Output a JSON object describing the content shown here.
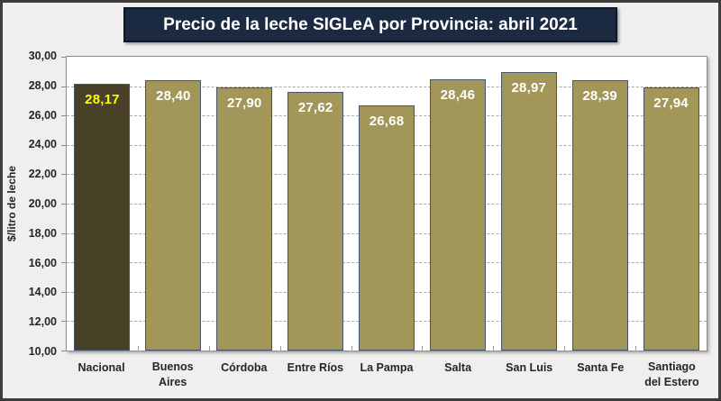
{
  "chart_data": {
    "type": "bar",
    "title": "Precio de la leche SIGLeA por Provincia: abril 2021",
    "ylabel": "$/litro de leche",
    "categories": [
      "Nacional",
      "Buenos Aires",
      "Córdoba",
      "Entre Ríos",
      "La Pampa",
      "Salta",
      "San Luis",
      "Santa Fe",
      "Santiago del Estero"
    ],
    "values": [
      28.17,
      28.4,
      27.9,
      27.62,
      26.68,
      28.46,
      28.97,
      28.39,
      27.94
    ],
    "value_labels": [
      "28,17",
      "28,40",
      "27,90",
      "27,62",
      "26,68",
      "28,46",
      "28,97",
      "28,39",
      "27,94"
    ],
    "ylim": [
      10,
      30
    ],
    "yticks": [
      {
        "value": 10,
        "label": "10,00"
      },
      {
        "value": 12,
        "label": "12,00"
      },
      {
        "value": 14,
        "label": "14,00"
      },
      {
        "value": 16,
        "label": "16,00"
      },
      {
        "value": 18,
        "label": "18,00"
      },
      {
        "value": 20,
        "label": "20,00"
      },
      {
        "value": 22,
        "label": "22,00"
      },
      {
        "value": 24,
        "label": "24,00"
      },
      {
        "value": 26,
        "label": "26,00"
      },
      {
        "value": 28,
        "label": "28,00"
      },
      {
        "value": 30,
        "label": "30,00"
      }
    ],
    "grid": "horizontal-dashed",
    "legend": "none",
    "colors": {
      "bar": "#a29758",
      "highlight_bar": "#494127",
      "bar_border": "#44546a",
      "value_label": "#ffffff",
      "highlight_value_label": "#ffff00",
      "title_background": "#1b2a41",
      "title_text": "#ffffff",
      "gridline": "#a9a9a9",
      "page_background": "#f0efed"
    },
    "highlight_index": 0
  }
}
